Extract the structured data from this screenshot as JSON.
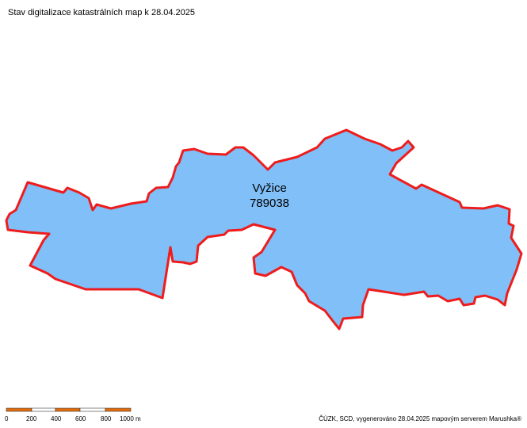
{
  "header": {
    "title": "Stav digitalizace katastrálních map k 28.04.2025"
  },
  "map": {
    "area_name": "Vyžice",
    "area_code": "789038"
  },
  "scale_bar": {
    "labels": [
      "0",
      "200",
      "400",
      "600",
      "800",
      "1000 m"
    ]
  },
  "footer": {
    "attribution": "ČÚZK, SCD, vygenerováno 28.04.2025 mapovým serverem Marushka®"
  }
}
